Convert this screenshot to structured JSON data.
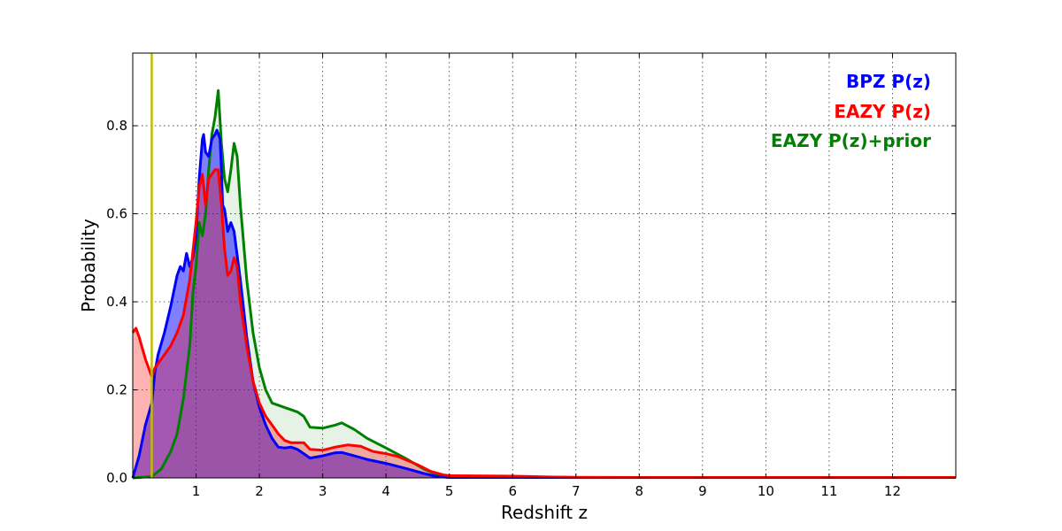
{
  "chart_data": {
    "type": "area",
    "xlabel": "Redshift z",
    "ylabel": "Probability",
    "xlim": [
      0,
      13
    ],
    "ylim": [
      0,
      0.965
    ],
    "x_ticks": [
      1,
      2,
      3,
      4,
      5,
      6,
      7,
      8,
      9,
      10,
      11,
      12
    ],
    "y_ticks": [
      0.0,
      0.2,
      0.4,
      0.6,
      0.8
    ],
    "grid": true,
    "legend_position": "top-right",
    "reference_line": {
      "x": 0.3,
      "color": "#bfbf00"
    },
    "series": [
      {
        "name": "EAZY P(z)+prior",
        "color": "#008000",
        "fill": "#008000",
        "fill_opacity": 0.1,
        "points": [
          [
            0,
            0
          ],
          [
            0.3,
            0.003
          ],
          [
            0.45,
            0.02
          ],
          [
            0.6,
            0.06
          ],
          [
            0.7,
            0.1
          ],
          [
            0.8,
            0.18
          ],
          [
            0.9,
            0.3
          ],
          [
            0.95,
            0.42
          ],
          [
            1.0,
            0.48
          ],
          [
            1.05,
            0.58
          ],
          [
            1.1,
            0.55
          ],
          [
            1.15,
            0.6
          ],
          [
            1.2,
            0.7
          ],
          [
            1.25,
            0.78
          ],
          [
            1.3,
            0.82
          ],
          [
            1.35,
            0.88
          ],
          [
            1.4,
            0.76
          ],
          [
            1.45,
            0.68
          ],
          [
            1.5,
            0.65
          ],
          [
            1.55,
            0.7
          ],
          [
            1.6,
            0.76
          ],
          [
            1.65,
            0.73
          ],
          [
            1.7,
            0.62
          ],
          [
            1.8,
            0.45
          ],
          [
            1.9,
            0.33
          ],
          [
            2.0,
            0.25
          ],
          [
            2.1,
            0.2
          ],
          [
            2.2,
            0.17
          ],
          [
            2.4,
            0.16
          ],
          [
            2.6,
            0.15
          ],
          [
            2.7,
            0.14
          ],
          [
            2.8,
            0.115
          ],
          [
            3.0,
            0.113
          ],
          [
            3.2,
            0.12
          ],
          [
            3.3,
            0.125
          ],
          [
            3.5,
            0.11
          ],
          [
            3.7,
            0.09
          ],
          [
            4.0,
            0.068
          ],
          [
            4.3,
            0.045
          ],
          [
            4.6,
            0.02
          ],
          [
            4.8,
            0.008
          ],
          [
            5.0,
            0.004
          ],
          [
            6.0,
            0.002
          ],
          [
            8.0,
            0.001
          ],
          [
            13,
            0.001
          ]
        ]
      },
      {
        "name": "BPZ P(z)",
        "color": "#0000ff",
        "fill": "#0000ff",
        "fill_opacity": 0.5,
        "points": [
          [
            0,
            0
          ],
          [
            0.1,
            0.05
          ],
          [
            0.2,
            0.12
          ],
          [
            0.3,
            0.17
          ],
          [
            0.35,
            0.24
          ],
          [
            0.4,
            0.28
          ],
          [
            0.5,
            0.33
          ],
          [
            0.6,
            0.39
          ],
          [
            0.7,
            0.46
          ],
          [
            0.75,
            0.48
          ],
          [
            0.8,
            0.47
          ],
          [
            0.85,
            0.51
          ],
          [
            0.9,
            0.48
          ],
          [
            0.95,
            0.5
          ],
          [
            1.0,
            0.55
          ],
          [
            1.05,
            0.68
          ],
          [
            1.1,
            0.77
          ],
          [
            1.12,
            0.78
          ],
          [
            1.15,
            0.74
          ],
          [
            1.2,
            0.73
          ],
          [
            1.25,
            0.77
          ],
          [
            1.3,
            0.78
          ],
          [
            1.33,
            0.79
          ],
          [
            1.38,
            0.77
          ],
          [
            1.4,
            0.7
          ],
          [
            1.42,
            0.62
          ],
          [
            1.45,
            0.61
          ],
          [
            1.5,
            0.56
          ],
          [
            1.55,
            0.58
          ],
          [
            1.6,
            0.56
          ],
          [
            1.7,
            0.45
          ],
          [
            1.8,
            0.32
          ],
          [
            1.9,
            0.22
          ],
          [
            2.0,
            0.16
          ],
          [
            2.1,
            0.12
          ],
          [
            2.2,
            0.09
          ],
          [
            2.3,
            0.07
          ],
          [
            2.4,
            0.068
          ],
          [
            2.5,
            0.07
          ],
          [
            2.6,
            0.065
          ],
          [
            2.7,
            0.055
          ],
          [
            2.8,
            0.045
          ],
          [
            3.0,
            0.05
          ],
          [
            3.2,
            0.057
          ],
          [
            3.3,
            0.058
          ],
          [
            3.5,
            0.05
          ],
          [
            3.7,
            0.042
          ],
          [
            4.0,
            0.033
          ],
          [
            4.3,
            0.022
          ],
          [
            4.6,
            0.01
          ],
          [
            4.8,
            0.003
          ],
          [
            5.0,
            0.001
          ],
          [
            13,
            0.001
          ]
        ]
      },
      {
        "name": "EAZY P(z)",
        "color": "#ff0000",
        "fill": "#ff0000",
        "fill_opacity": 0.3,
        "points": [
          [
            0,
            0.33
          ],
          [
            0.05,
            0.34
          ],
          [
            0.1,
            0.32
          ],
          [
            0.2,
            0.27
          ],
          [
            0.3,
            0.23
          ],
          [
            0.35,
            0.25
          ],
          [
            0.4,
            0.26
          ],
          [
            0.5,
            0.28
          ],
          [
            0.6,
            0.3
          ],
          [
            0.7,
            0.33
          ],
          [
            0.8,
            0.37
          ],
          [
            0.9,
            0.45
          ],
          [
            1.0,
            0.58
          ],
          [
            1.05,
            0.66
          ],
          [
            1.1,
            0.69
          ],
          [
            1.15,
            0.62
          ],
          [
            1.2,
            0.68
          ],
          [
            1.3,
            0.7
          ],
          [
            1.35,
            0.7
          ],
          [
            1.4,
            0.62
          ],
          [
            1.45,
            0.52
          ],
          [
            1.5,
            0.46
          ],
          [
            1.55,
            0.47
          ],
          [
            1.6,
            0.5
          ],
          [
            1.65,
            0.48
          ],
          [
            1.7,
            0.4
          ],
          [
            1.8,
            0.3
          ],
          [
            1.9,
            0.22
          ],
          [
            2.0,
            0.17
          ],
          [
            2.1,
            0.14
          ],
          [
            2.2,
            0.12
          ],
          [
            2.3,
            0.1
          ],
          [
            2.4,
            0.085
          ],
          [
            2.5,
            0.08
          ],
          [
            2.7,
            0.08
          ],
          [
            2.8,
            0.065
          ],
          [
            3.0,
            0.063
          ],
          [
            3.2,
            0.07
          ],
          [
            3.4,
            0.075
          ],
          [
            3.6,
            0.072
          ],
          [
            3.8,
            0.06
          ],
          [
            4.0,
            0.055
          ],
          [
            4.2,
            0.048
          ],
          [
            4.5,
            0.03
          ],
          [
            4.7,
            0.015
          ],
          [
            4.9,
            0.007
          ],
          [
            5.0,
            0.005
          ],
          [
            6.0,
            0.004
          ],
          [
            7.0,
            0.001
          ],
          [
            13,
            0.001
          ]
        ]
      }
    ],
    "legend": [
      {
        "label": "BPZ P(z)",
        "color": "#0000ff"
      },
      {
        "label": "EAZY P(z)",
        "color": "#ff0000"
      },
      {
        "label": "EAZY P(z)+prior",
        "color": "#008000"
      }
    ]
  }
}
